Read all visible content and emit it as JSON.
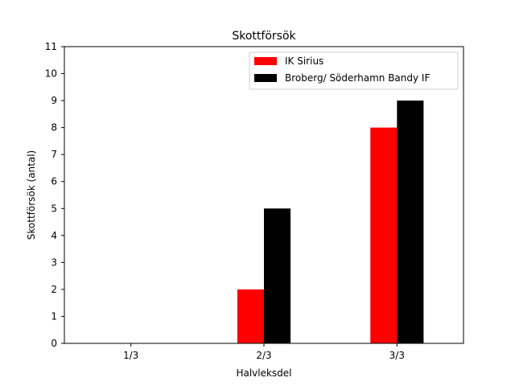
{
  "chart_data": {
    "type": "bar",
    "title": "Skottförsök",
    "xlabel": "Halvleksdel",
    "ylabel": "Skottförsök (antal)",
    "categories": [
      "1/3",
      "2/3",
      "3/3"
    ],
    "series": [
      {
        "name": "IK Sirius",
        "color": "#ff0000",
        "values": [
          0,
          2,
          8
        ]
      },
      {
        "name": "Broberg/ Söderhamn Bandy IF",
        "color": "#000000",
        "values": [
          0,
          5,
          9
        ]
      }
    ],
    "ylim": [
      0,
      11
    ],
    "yticks": [
      0,
      1,
      2,
      3,
      4,
      5,
      6,
      7,
      8,
      9,
      10,
      11
    ],
    "grid": false,
    "legend": "top-right"
  }
}
